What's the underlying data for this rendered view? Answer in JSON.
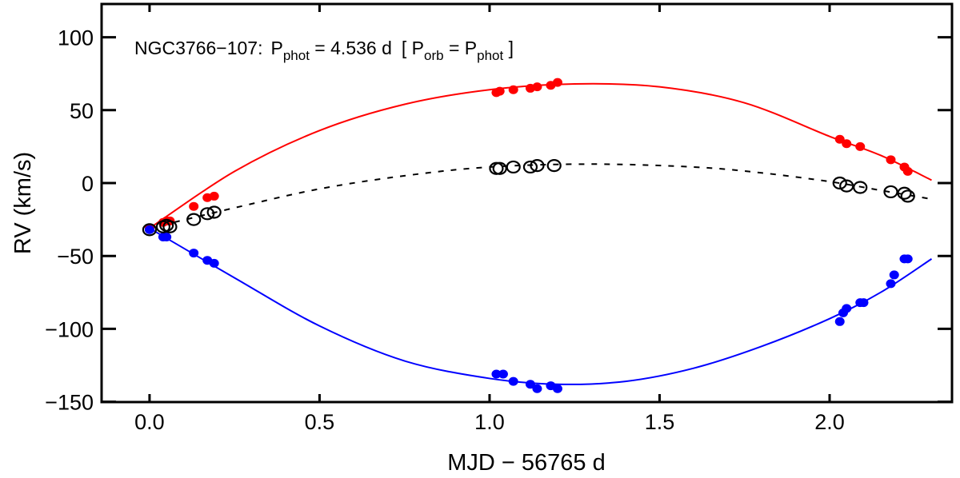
{
  "chart_data": {
    "type": "scatter",
    "title": {
      "object": "NGC3766−107:",
      "p": "P",
      "phot_sub": "phot",
      "period_value": " = 4.536 d",
      "bracket_open": "[ P",
      "orb_sub": "orb",
      "eq": " = P",
      "phot_sub2": "phot",
      "bracket_close": " ]"
    },
    "xlabel": "MJD − 56765 d",
    "ylabel": "RV (km/s)",
    "xlim": [
      -0.141,
      2.36
    ],
    "ylim": [
      -150.2,
      122.8
    ],
    "xticks": [
      {
        "v": 0,
        "label": "0.0"
      },
      {
        "v": 0.5,
        "label": "0.5"
      },
      {
        "v": 1.0,
        "label": "1.0"
      },
      {
        "v": 1.5,
        "label": "1.5"
      },
      {
        "v": 2.0,
        "label": "2.0"
      }
    ],
    "yticks": [
      {
        "v": 100,
        "label": "100"
      },
      {
        "v": 50,
        "label": "50"
      },
      {
        "v": 0,
        "label": "0"
      },
      {
        "v": -50,
        "label": "−50"
      },
      {
        "v": -100,
        "label": "−100"
      },
      {
        "v": -150,
        "label": "−150"
      }
    ],
    "colors": {
      "primary": "#ff0000",
      "secondary": "#0000ff",
      "combined": "#000000"
    },
    "curves": [
      {
        "name": "primary-fit",
        "color": "#ff0000",
        "dashed": false,
        "points": [
          [
            0,
            -31
          ],
          [
            0.25,
            8
          ],
          [
            0.5,
            36
          ],
          [
            0.75,
            54
          ],
          [
            1.0,
            64
          ],
          [
            1.25,
            68
          ],
          [
            1.5,
            66
          ],
          [
            1.75,
            55
          ],
          [
            2.0,
            32
          ],
          [
            2.15,
            19
          ],
          [
            2.3,
            2
          ]
        ]
      },
      {
        "name": "secondary-fit",
        "color": "#0000ff",
        "dashed": false,
        "points": [
          [
            0,
            -31
          ],
          [
            0.25,
            -65
          ],
          [
            0.5,
            -98
          ],
          [
            0.75,
            -122
          ],
          [
            1.0,
            -134
          ],
          [
            1.2,
            -138
          ],
          [
            1.4,
            -136
          ],
          [
            1.6,
            -127
          ],
          [
            1.8,
            -112
          ],
          [
            2.0,
            -93
          ],
          [
            2.15,
            -75
          ],
          [
            2.3,
            -52
          ]
        ]
      },
      {
        "name": "combined-fit",
        "color": "#000000",
        "dashed": true,
        "points": [
          [
            0,
            -31
          ],
          [
            0.25,
            -17
          ],
          [
            0.5,
            -4
          ],
          [
            0.75,
            5
          ],
          [
            1.0,
            11
          ],
          [
            1.3,
            13
          ],
          [
            1.6,
            11
          ],
          [
            1.8,
            7
          ],
          [
            2.0,
            1
          ],
          [
            2.15,
            -5
          ],
          [
            2.3,
            -11
          ]
        ]
      }
    ],
    "series": [
      {
        "name": "primary",
        "color": "#ff0000",
        "marker": "filled",
        "points": [
          [
            0,
            -31
          ],
          [
            0.04,
            -27
          ],
          [
            0.05,
            -26
          ],
          [
            0.06,
            -26
          ],
          [
            0.13,
            -16
          ],
          [
            0.17,
            -10
          ],
          [
            0.19,
            -9
          ],
          [
            1.02,
            62
          ],
          [
            1.03,
            63
          ],
          [
            1.07,
            64
          ],
          [
            1.12,
            65
          ],
          [
            1.14,
            66
          ],
          [
            1.18,
            67
          ],
          [
            1.2,
            69
          ],
          [
            2.03,
            30
          ],
          [
            2.05,
            27
          ],
          [
            2.09,
            25
          ],
          [
            2.18,
            16
          ],
          [
            2.22,
            11
          ],
          [
            2.23,
            8
          ]
        ]
      },
      {
        "name": "secondary",
        "color": "#0000ff",
        "marker": "filled",
        "points": [
          [
            0,
            -32
          ],
          [
            0.04,
            -37
          ],
          [
            0.05,
            -37
          ],
          [
            0.13,
            -48
          ],
          [
            0.17,
            -53
          ],
          [
            0.19,
            -55
          ],
          [
            1.02,
            -131
          ],
          [
            1.04,
            -131
          ],
          [
            1.07,
            -136
          ],
          [
            1.12,
            -138
          ],
          [
            1.14,
            -141
          ],
          [
            1.18,
            -139
          ],
          [
            1.2,
            -141
          ],
          [
            2.03,
            -95
          ],
          [
            2.04,
            -89
          ],
          [
            2.05,
            -86
          ],
          [
            2.09,
            -82
          ],
          [
            2.1,
            -82
          ],
          [
            2.18,
            -69
          ],
          [
            2.19,
            -63
          ],
          [
            2.22,
            -52
          ],
          [
            2.23,
            -52
          ]
        ]
      },
      {
        "name": "combined",
        "color": "#000000",
        "marker": "open",
        "points": [
          [
            0,
            -32
          ],
          [
            0.04,
            -30
          ],
          [
            0.05,
            -29
          ],
          [
            0.06,
            -30
          ],
          [
            0.13,
            -25
          ],
          [
            0.17,
            -21
          ],
          [
            0.19,
            -20
          ],
          [
            1.02,
            10
          ],
          [
            1.03,
            10
          ],
          [
            1.07,
            11
          ],
          [
            1.12,
            11
          ],
          [
            1.14,
            12
          ],
          [
            1.19,
            12
          ],
          [
            2.03,
            0
          ],
          [
            2.05,
            -2
          ],
          [
            2.09,
            -3
          ],
          [
            2.18,
            -6
          ],
          [
            2.22,
            -7
          ],
          [
            2.23,
            -9
          ]
        ]
      }
    ]
  }
}
